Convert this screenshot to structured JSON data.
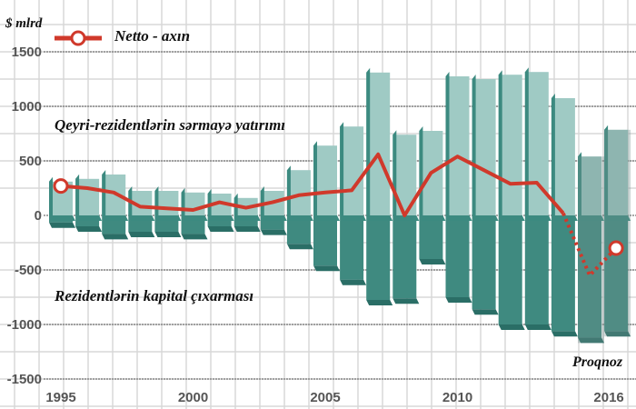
{
  "chart_data": {
    "type": "bar",
    "ylabel": "$ mlrd",
    "ylim": [
      -1500,
      1500
    ],
    "yticks": [
      1500,
      1000,
      500,
      0,
      -500,
      -1000,
      -1500
    ],
    "xtick_labels": [
      "1995",
      "2000",
      "2005",
      "2010",
      "2016"
    ],
    "grid": true,
    "categories": [
      1995,
      1996,
      1997,
      1998,
      1999,
      2000,
      2001,
      2002,
      2003,
      2004,
      2005,
      2006,
      2007,
      2008,
      2009,
      2010,
      2011,
      2012,
      2013,
      2014,
      2015,
      2016
    ],
    "series": [
      {
        "name": "Qeyri-rezidentlərin sərmayə yatırımı",
        "type": "bar",
        "values": [
          310,
          335,
          375,
          225,
          225,
          210,
          200,
          160,
          225,
          415,
          640,
          815,
          1310,
          740,
          775,
          1275,
          1250,
          1290,
          1315,
          1075,
          540,
          785
        ]
      },
      {
        "name": "Rezidentlərin kapital çıxarması",
        "type": "bar",
        "values": [
          -65,
          -100,
          -170,
          -150,
          -150,
          -170,
          -100,
          -100,
          -130,
          -260,
          -460,
          -590,
          -775,
          -760,
          -400,
          -750,
          -860,
          -1000,
          -1000,
          -1060,
          -1120,
          -1060
        ]
      },
      {
        "name": "Netto - axın",
        "type": "line",
        "values": [
          270,
          250,
          210,
          80,
          65,
          50,
          120,
          70,
          120,
          185,
          210,
          230,
          560,
          0,
          390,
          540,
          415,
          290,
          300,
          20,
          -550,
          -300
        ]
      }
    ],
    "forecast_years": [
      2015,
      2016
    ],
    "forecast_label": "Proqnoz",
    "legend_placement": "top-left",
    "colors": {
      "positive": "#9fcac4",
      "positive_side": "#3c8a80",
      "negative": "#3f8a80",
      "negative_side": "#2a6e66",
      "forecast_overlay": "#7aa8a2",
      "line": "#d0392b"
    }
  }
}
